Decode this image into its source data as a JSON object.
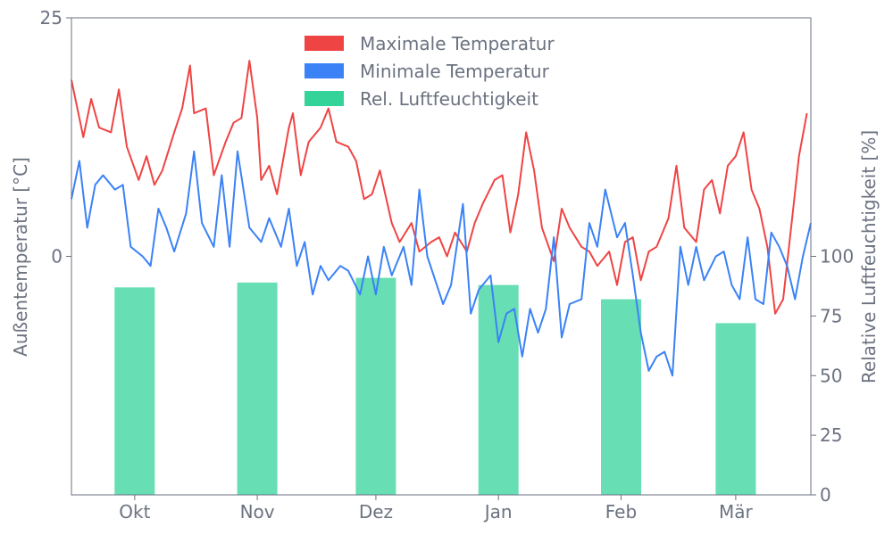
{
  "chart_data": {
    "type": "line",
    "title": "",
    "x_axis": {
      "tick_labels": [
        "Okt",
        "Nov",
        "Dez",
        "Jan",
        "Feb",
        "Mär"
      ],
      "tick_dates": [
        "2023-10-01",
        "2023-11-01",
        "2023-12-01",
        "2024-01-01",
        "2024-02-01",
        "2024-03-01"
      ],
      "range": [
        "2023-09-15",
        "2024-03-20"
      ]
    },
    "y_left": {
      "label": "Außentemperatur [°C]",
      "ticks": [
        0,
        25
      ],
      "range": [
        -25,
        25
      ]
    },
    "y_right": {
      "label": "Relative Luftfeuchtigkeit [%]",
      "ticks": [
        0,
        25,
        50,
        75,
        100
      ],
      "range": [
        0,
        200
      ]
    },
    "legend": {
      "placement": "top-center",
      "entries": [
        {
          "label": "Maximale Temperatur",
          "color": "#ef4444"
        },
        {
          "label": "Minimale Temperatur",
          "color": "#3b82f6"
        },
        {
          "label": "Rel. Luftfeuchtigkeit",
          "color": "#34d399"
        }
      ]
    },
    "series": [
      {
        "name": "Maximale Temperatur",
        "color": "#ef4444",
        "axis": "left",
        "points": [
          [
            "2023-09-15",
            18.5
          ],
          [
            "2023-09-18",
            12.5
          ],
          [
            "2023-09-20",
            16.5
          ],
          [
            "2023-09-22",
            13.5
          ],
          [
            "2023-09-25",
            13.0
          ],
          [
            "2023-09-27",
            17.5
          ],
          [
            "2023-09-29",
            11.5
          ],
          [
            "2023-10-02",
            8.0
          ],
          [
            "2023-10-04",
            10.5
          ],
          [
            "2023-10-06",
            7.5
          ],
          [
            "2023-10-08",
            9.0
          ],
          [
            "2023-10-11",
            13.0
          ],
          [
            "2023-10-13",
            15.5
          ],
          [
            "2023-10-15",
            20.0
          ],
          [
            "2023-10-16",
            15.0
          ],
          [
            "2023-10-19",
            15.5
          ],
          [
            "2023-10-21",
            8.5
          ],
          [
            "2023-10-24",
            12.0
          ],
          [
            "2023-10-26",
            14.0
          ],
          [
            "2023-10-28",
            14.5
          ],
          [
            "2023-10-30",
            20.5
          ],
          [
            "2023-11-01",
            14.5
          ],
          [
            "2023-11-02",
            8.0
          ],
          [
            "2023-11-04",
            9.5
          ],
          [
            "2023-11-06",
            6.5
          ],
          [
            "2023-11-09",
            13.5
          ],
          [
            "2023-11-10",
            15.0
          ],
          [
            "2023-11-12",
            8.5
          ],
          [
            "2023-11-14",
            12.0
          ],
          [
            "2023-11-17",
            13.5
          ],
          [
            "2023-11-19",
            15.5
          ],
          [
            "2023-11-21",
            12.0
          ],
          [
            "2023-11-24",
            11.5
          ],
          [
            "2023-11-26",
            10.0
          ],
          [
            "2023-11-28",
            6.0
          ],
          [
            "2023-11-30",
            6.5
          ],
          [
            "2023-12-02",
            9.0
          ],
          [
            "2023-12-05",
            3.5
          ],
          [
            "2023-12-07",
            1.5
          ],
          [
            "2023-12-10",
            3.5
          ],
          [
            "2023-12-12",
            0.5
          ],
          [
            "2023-12-15",
            1.5
          ],
          [
            "2023-12-17",
            2.0
          ],
          [
            "2023-12-19",
            0.0
          ],
          [
            "2023-12-21",
            2.5
          ],
          [
            "2023-12-24",
            0.5
          ],
          [
            "2023-12-26",
            3.5
          ],
          [
            "2023-12-28",
            5.5
          ],
          [
            "2023-12-31",
            8.0
          ],
          [
            "2024-01-02",
            8.5
          ],
          [
            "2024-01-04",
            2.5
          ],
          [
            "2024-01-06",
            6.5
          ],
          [
            "2024-01-08",
            13.0
          ],
          [
            "2024-01-10",
            9.0
          ],
          [
            "2024-01-12",
            3.0
          ],
          [
            "2024-01-15",
            -0.5
          ],
          [
            "2024-01-17",
            5.0
          ],
          [
            "2024-01-19",
            3.0
          ],
          [
            "2024-01-22",
            1.0
          ],
          [
            "2024-01-24",
            0.5
          ],
          [
            "2024-01-26",
            -1.0
          ],
          [
            "2024-01-29",
            0.5
          ],
          [
            "2024-01-31",
            -3.0
          ],
          [
            "2024-02-02",
            1.5
          ],
          [
            "2024-02-04",
            2.0
          ],
          [
            "2024-02-06",
            -2.5
          ],
          [
            "2024-02-08",
            0.5
          ],
          [
            "2024-02-10",
            1.0
          ],
          [
            "2024-02-13",
            4.0
          ],
          [
            "2024-02-15",
            9.5
          ],
          [
            "2024-02-17",
            3.0
          ],
          [
            "2024-02-20",
            1.5
          ],
          [
            "2024-02-22",
            7.0
          ],
          [
            "2024-02-24",
            8.0
          ],
          [
            "2024-02-26",
            4.5
          ],
          [
            "2024-02-28",
            9.5
          ],
          [
            "2024-03-01",
            10.5
          ],
          [
            "2024-03-03",
            13.0
          ],
          [
            "2024-03-05",
            7.0
          ],
          [
            "2024-03-07",
            5.0
          ],
          [
            "2024-03-09",
            1.0
          ],
          [
            "2024-03-11",
            -6.0
          ],
          [
            "2024-03-13",
            -4.5
          ],
          [
            "2024-03-15",
            3.0
          ],
          [
            "2024-03-17",
            10.5
          ],
          [
            "2024-03-19",
            15.0
          ]
        ]
      },
      {
        "name": "Minimale Temperatur",
        "color": "#3b82f6",
        "axis": "left",
        "points": [
          [
            "2023-09-15",
            6.0
          ],
          [
            "2023-09-17",
            10.0
          ],
          [
            "2023-09-19",
            3.0
          ],
          [
            "2023-09-21",
            7.5
          ],
          [
            "2023-09-23",
            8.5
          ],
          [
            "2023-09-26",
            7.0
          ],
          [
            "2023-09-28",
            7.5
          ],
          [
            "2023-09-30",
            1.0
          ],
          [
            "2023-10-03",
            0.0
          ],
          [
            "2023-10-05",
            -1.0
          ],
          [
            "2023-10-07",
            5.0
          ],
          [
            "2023-10-09",
            3.0
          ],
          [
            "2023-10-11",
            0.5
          ],
          [
            "2023-10-14",
            4.5
          ],
          [
            "2023-10-16",
            11.0
          ],
          [
            "2023-10-18",
            3.5
          ],
          [
            "2023-10-21",
            1.0
          ],
          [
            "2023-10-23",
            8.5
          ],
          [
            "2023-10-25",
            1.0
          ],
          [
            "2023-10-27",
            11.0
          ],
          [
            "2023-10-30",
            3.0
          ],
          [
            "2023-11-02",
            1.5
          ],
          [
            "2023-11-04",
            4.0
          ],
          [
            "2023-11-07",
            1.0
          ],
          [
            "2023-11-09",
            5.0
          ],
          [
            "2023-11-11",
            -1.0
          ],
          [
            "2023-11-13",
            1.5
          ],
          [
            "2023-11-15",
            -4.0
          ],
          [
            "2023-11-17",
            -1.0
          ],
          [
            "2023-11-19",
            -2.5
          ],
          [
            "2023-11-22",
            -1.0
          ],
          [
            "2023-11-24",
            -1.5
          ],
          [
            "2023-11-27",
            -4.0
          ],
          [
            "2023-11-29",
            0.0
          ],
          [
            "2023-12-01",
            -4.0
          ],
          [
            "2023-12-03",
            1.0
          ],
          [
            "2023-12-05",
            -2.0
          ],
          [
            "2023-12-08",
            1.0
          ],
          [
            "2023-12-10",
            -3.0
          ],
          [
            "2023-12-12",
            7.0
          ],
          [
            "2023-12-14",
            0.0
          ],
          [
            "2023-12-16",
            -2.5
          ],
          [
            "2023-12-18",
            -5.0
          ],
          [
            "2023-12-20",
            -3.0
          ],
          [
            "2023-12-23",
            5.5
          ],
          [
            "2023-12-25",
            -6.0
          ],
          [
            "2023-12-27",
            -3.5
          ],
          [
            "2023-12-30",
            -2.0
          ],
          [
            "2024-01-01",
            -9.0
          ],
          [
            "2024-01-03",
            -6.0
          ],
          [
            "2024-01-05",
            -5.5
          ],
          [
            "2024-01-07",
            -10.5
          ],
          [
            "2024-01-09",
            -5.5
          ],
          [
            "2024-01-11",
            -8.0
          ],
          [
            "2024-01-13",
            -5.5
          ],
          [
            "2024-01-15",
            2.0
          ],
          [
            "2024-01-17",
            -8.5
          ],
          [
            "2024-01-19",
            -5.0
          ],
          [
            "2024-01-22",
            -4.5
          ],
          [
            "2024-01-24",
            3.5
          ],
          [
            "2024-01-26",
            1.0
          ],
          [
            "2024-01-28",
            7.0
          ],
          [
            "2024-01-31",
            2.0
          ],
          [
            "2024-02-02",
            3.5
          ],
          [
            "2024-02-04",
            -2.0
          ],
          [
            "2024-02-06",
            -8.0
          ],
          [
            "2024-02-08",
            -12.0
          ],
          [
            "2024-02-10",
            -10.5
          ],
          [
            "2024-02-12",
            -10.0
          ],
          [
            "2024-02-14",
            -12.5
          ],
          [
            "2024-02-16",
            1.0
          ],
          [
            "2024-02-18",
            -3.0
          ],
          [
            "2024-02-20",
            1.0
          ],
          [
            "2024-02-22",
            -2.5
          ],
          [
            "2024-02-25",
            0.0
          ],
          [
            "2024-02-27",
            0.5
          ],
          [
            "2024-02-29",
            -3.0
          ],
          [
            "2024-03-02",
            -4.5
          ],
          [
            "2024-03-04",
            2.0
          ],
          [
            "2024-03-06",
            -4.5
          ],
          [
            "2024-03-08",
            -5.0
          ],
          [
            "2024-03-10",
            2.5
          ],
          [
            "2024-03-12",
            1.0
          ],
          [
            "2024-03-14",
            -1.0
          ],
          [
            "2024-03-16",
            -4.5
          ],
          [
            "2024-03-18",
            0.0
          ],
          [
            "2024-03-20",
            3.5
          ]
        ]
      },
      {
        "name": "Rel. Luftfeuchtigkeit",
        "color": "#34d399",
        "axis": "right",
        "type": "bar",
        "bars": [
          {
            "center": "2023-10-01",
            "value": 87
          },
          {
            "center": "2023-11-01",
            "value": 89
          },
          {
            "center": "2023-12-01",
            "value": 91
          },
          {
            "center": "2024-01-01",
            "value": 88
          },
          {
            "center": "2024-02-01",
            "value": 82
          },
          {
            "center": "2024-03-01",
            "value": 72
          }
        ]
      }
    ]
  }
}
